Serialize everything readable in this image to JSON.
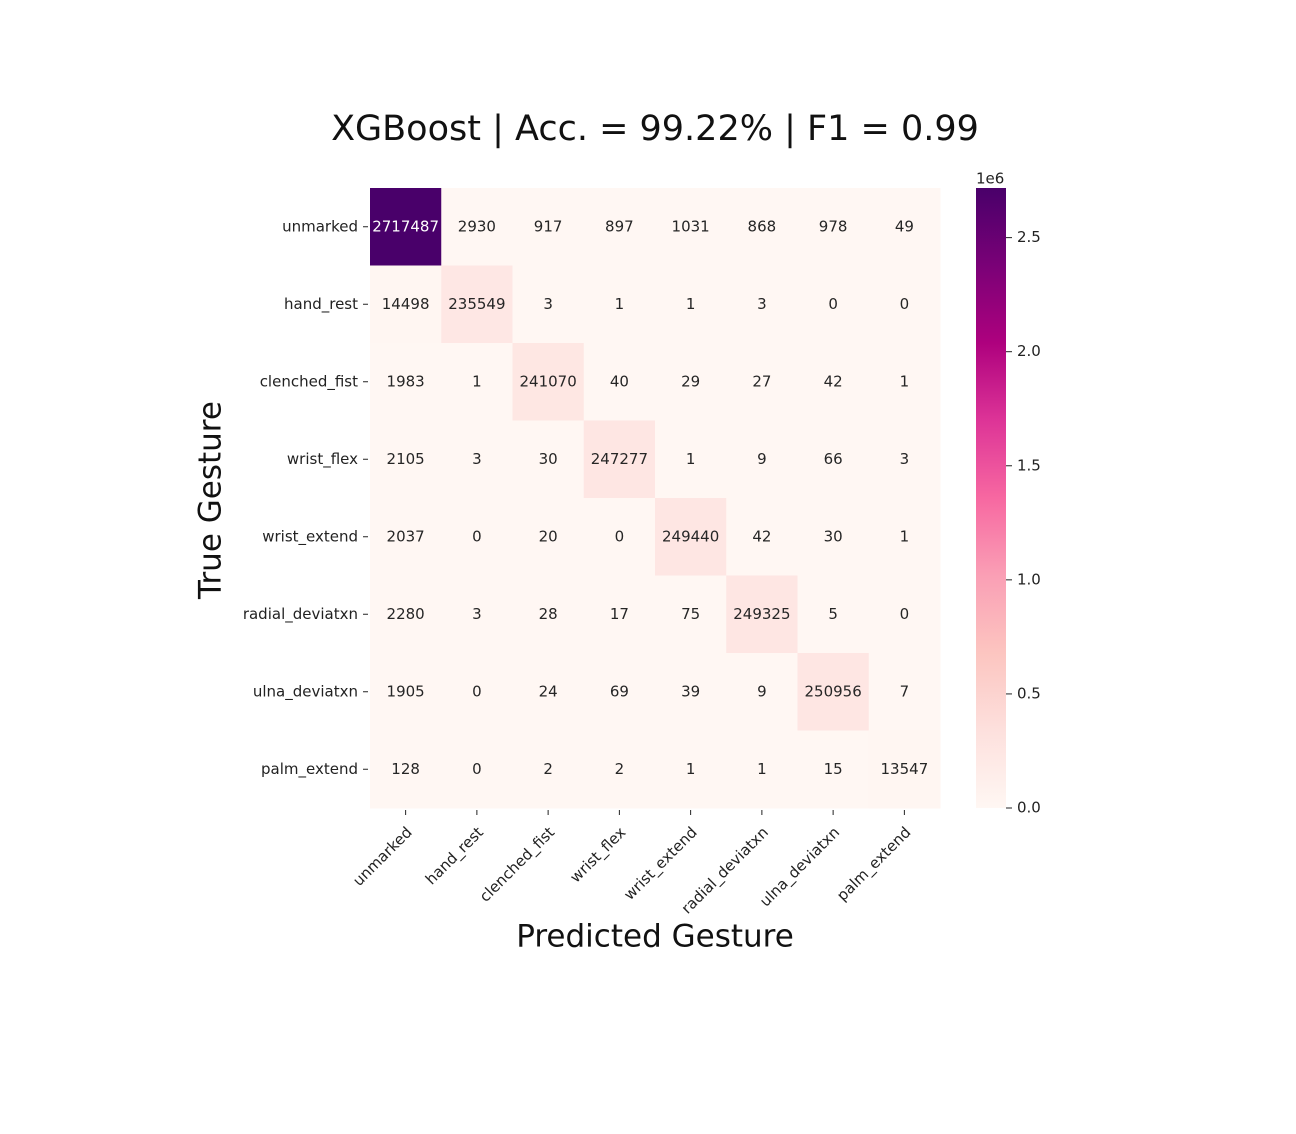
{
  "chart_data": {
    "type": "heatmap",
    "title": "XGBoost | Acc. = 99.22% | F1 = 0.99",
    "xlabel": "Predicted Gesture",
    "ylabel": "True Gesture",
    "x": [
      "unmarked",
      "hand_rest",
      "clenched_fist",
      "wrist_flex",
      "wrist_extend",
      "radial_deviatxn",
      "ulna_deviatxn",
      "palm_extend"
    ],
    "y": [
      "unmarked",
      "hand_rest",
      "clenched_fist",
      "wrist_flex",
      "wrist_extend",
      "radial_deviatxn",
      "ulna_deviatxn",
      "palm_extend"
    ],
    "z": [
      [
        2717487,
        2930,
        917,
        897,
        1031,
        868,
        978,
        49
      ],
      [
        14498,
        235549,
        3,
        1,
        1,
        3,
        0,
        0
      ],
      [
        1983,
        1,
        241070,
        40,
        29,
        27,
        42,
        1
      ],
      [
        2105,
        3,
        30,
        247277,
        1,
        9,
        66,
        3
      ],
      [
        2037,
        0,
        20,
        0,
        249440,
        42,
        30,
        1
      ],
      [
        2280,
        3,
        28,
        17,
        75,
        249325,
        5,
        0
      ],
      [
        1905,
        0,
        24,
        69,
        39,
        9,
        250956,
        7
      ],
      [
        128,
        0,
        2,
        2,
        1,
        1,
        15,
        13547
      ]
    ],
    "zlim": [
      0,
      2717487
    ],
    "colorbar_ticks": [
      {
        "value": 0,
        "label": "0.0"
      },
      {
        "value": 500000,
        "label": "0.5"
      },
      {
        "value": 1000000,
        "label": "1.0"
      },
      {
        "value": 1500000,
        "label": "1.5"
      },
      {
        "value": 2000000,
        "label": "2.0"
      },
      {
        "value": 2500000,
        "label": "2.5"
      }
    ],
    "colorbar_offset_label": "1e6",
    "colormap": [
      "#fff7f3",
      "#fde0dd",
      "#fcc5c0",
      "#fa9fb5",
      "#f768a1",
      "#dd3497",
      "#ae017e",
      "#7a0177",
      "#49006a"
    ]
  }
}
